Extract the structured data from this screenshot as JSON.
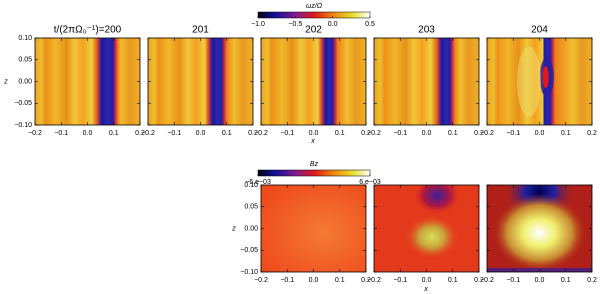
{
  "top": {
    "colorbar": {
      "label": "ωz/Ω",
      "ticks": [
        "−1.0",
        "−0.5",
        "0.0",
        "0.5"
      ]
    },
    "panels": [
      "t/(2πΩ₀⁻¹)=200",
      "201",
      "202",
      "203",
      "204"
    ],
    "y_label": "z",
    "y_ticks": [
      "0.10",
      "0.05",
      "0.00",
      "−0.05",
      "−0.10"
    ],
    "x_ticks": [
      "−0.2",
      "−0.1",
      "0.0",
      "0.1",
      "0.2"
    ],
    "x_label": "x"
  },
  "bottom": {
    "colorbar": {
      "label": "Bz",
      "ticks": [
        "−6.e−03",
        "6.e−03"
      ]
    },
    "y_label": "z",
    "y_ticks": [
      "0.10",
      "0.05",
      "0.00",
      "−0.05",
      "−0.10"
    ],
    "x_ticks": [
      "−0.2",
      "−0.1",
      "0.0",
      "0.1",
      "0.2"
    ],
    "x_label": "x"
  }
}
